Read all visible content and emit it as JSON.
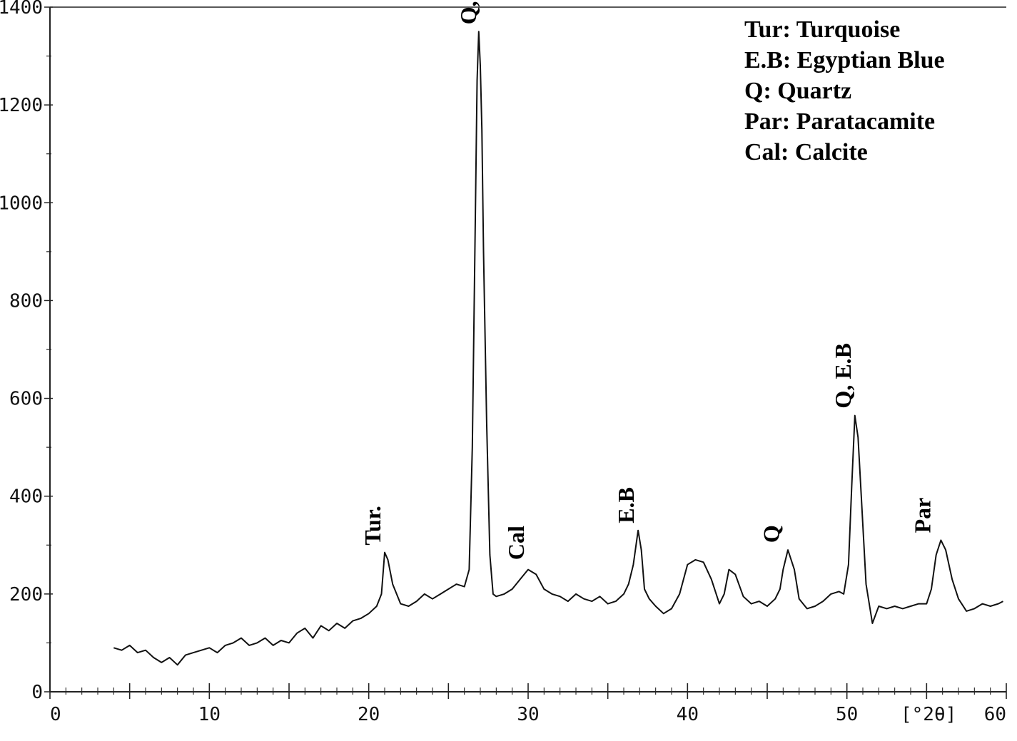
{
  "chart_data": {
    "type": "line",
    "title": "",
    "xlabel": "[°2θ]",
    "ylabel": "",
    "xlim": [
      0,
      60
    ],
    "ylim": [
      0,
      1400
    ],
    "x_ticks": [
      0,
      10,
      20,
      30,
      40,
      50,
      60
    ],
    "x_tick_labels": [
      "0",
      "10",
      "20",
      "30",
      "40",
      "50",
      "60"
    ],
    "y_ticks": [
      0,
      200,
      400,
      600,
      800,
      1000,
      1200,
      1400
    ],
    "y_tick_labels": [
      "0",
      "200",
      "400",
      "600",
      "800",
      "1000",
      "1200",
      "1400"
    ],
    "grid": false,
    "line_color": "#111111",
    "legend": {
      "placement": "top-right",
      "entries": [
        "Tur: Turquoise",
        "E.B: Egyptian Blue",
        "Q: Quartz",
        "Par: Paratacamite",
        "Cal: Calcite"
      ]
    },
    "annotations": [
      {
        "text": "Tur.",
        "x": 21.0,
        "y": 285
      },
      {
        "text": "Q, E.B",
        "x": 27.0,
        "y": 1350
      },
      {
        "text": "Cal",
        "x": 30.0,
        "y": 255
      },
      {
        "text": "E.B",
        "x": 36.9,
        "y": 330
      },
      {
        "text": "Q",
        "x": 46.0,
        "y": 290
      },
      {
        "text": "Q, E.B",
        "x": 50.5,
        "y": 565
      },
      {
        "text": "Par",
        "x": 55.5,
        "y": 310
      }
    ],
    "series": [
      {
        "x": [
          4.0,
          4.5,
          5.0,
          5.5,
          6.0,
          6.5,
          7.0,
          7.5,
          8.0,
          8.5,
          9.0,
          9.5,
          10.0,
          10.5,
          11.0,
          11.5,
          12.0,
          12.5,
          13.0,
          13.5,
          14.0,
          14.5,
          15.0,
          15.5,
          16.0,
          16.5,
          17.0,
          17.5,
          18.0,
          18.5,
          19.0,
          19.5,
          20.0,
          20.5,
          20.8,
          21.0,
          21.2,
          21.5,
          22.0,
          22.5,
          23.0,
          23.5,
          24.0,
          24.5,
          25.0,
          25.5,
          26.0,
          26.3,
          26.5,
          26.7,
          26.8,
          26.9,
          27.0,
          27.1,
          27.2,
          27.4,
          27.6,
          27.8,
          28.0,
          28.5,
          29.0,
          29.5,
          30.0,
          30.5,
          31.0,
          31.5,
          32.0,
          32.5,
          33.0,
          33.5,
          34.0,
          34.5,
          35.0,
          35.5,
          36.0,
          36.3,
          36.6,
          36.9,
          37.1,
          37.3,
          37.6,
          38.0,
          38.5,
          39.0,
          39.5,
          40.0,
          40.5,
          41.0,
          41.5,
          42.0,
          42.3,
          42.6,
          43.0,
          43.5,
          44.0,
          44.5,
          45.0,
          45.5,
          45.8,
          46.0,
          46.3,
          46.7,
          47.0,
          47.5,
          48.0,
          48.5,
          49.0,
          49.5,
          49.8,
          50.1,
          50.3,
          50.5,
          50.7,
          50.9,
          51.2,
          51.6,
          52.0,
          52.5,
          53.0,
          53.5,
          54.0,
          54.5,
          55.0,
          55.3,
          55.6,
          55.9,
          56.2,
          56.6,
          57.0,
          57.5,
          58.0,
          58.5,
          59.0,
          59.5,
          59.8
        ],
        "y": [
          90,
          85,
          95,
          80,
          85,
          70,
          60,
          70,
          55,
          75,
          80,
          85,
          90,
          80,
          95,
          100,
          110,
          95,
          100,
          110,
          95,
          105,
          100,
          120,
          130,
          110,
          135,
          125,
          140,
          130,
          145,
          150,
          160,
          175,
          200,
          285,
          270,
          220,
          180,
          175,
          185,
          200,
          190,
          200,
          210,
          220,
          215,
          250,
          500,
          1000,
          1250,
          1350,
          1280,
          1150,
          900,
          550,
          280,
          200,
          195,
          200,
          210,
          230,
          250,
          240,
          210,
          200,
          195,
          185,
          200,
          190,
          185,
          195,
          180,
          185,
          200,
          220,
          260,
          330,
          290,
          210,
          190,
          175,
          160,
          170,
          200,
          260,
          270,
          265,
          230,
          180,
          200,
          250,
          240,
          195,
          180,
          185,
          175,
          190,
          210,
          250,
          290,
          250,
          190,
          170,
          175,
          185,
          200,
          205,
          200,
          260,
          420,
          565,
          520,
          400,
          220,
          140,
          175,
          170,
          175,
          170,
          175,
          180,
          180,
          210,
          280,
          310,
          290,
          230,
          190,
          165,
          170,
          180,
          175,
          180,
          185
        ]
      }
    ]
  }
}
